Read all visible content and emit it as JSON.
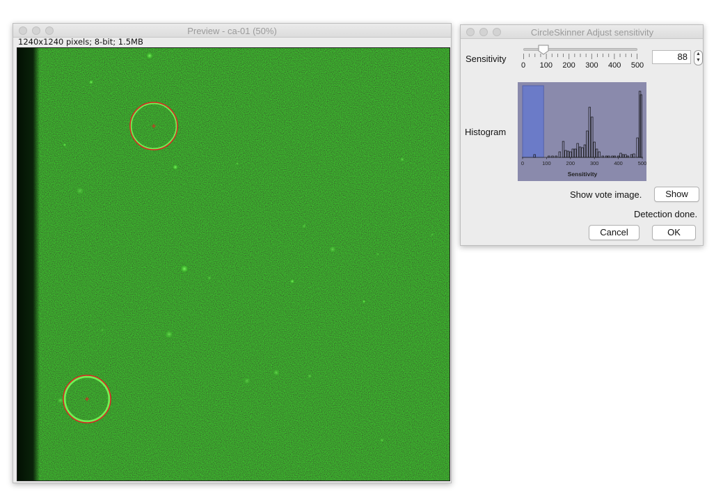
{
  "preview_window": {
    "title": "Preview - ca-01 (50%)",
    "image_info": "1240x1240 pixels; 8-bit; 1.5MB"
  },
  "dialog": {
    "title": "CircleSkinner Adjust sensitivity",
    "sensitivity_label": "Sensitivity",
    "slider": {
      "min": 0,
      "max": 500,
      "value": 88,
      "tick_labels": [
        "0",
        "100",
        "200",
        "300",
        "400",
        "500"
      ]
    },
    "sensitivity_value": "88",
    "histogram_label": "Histogram",
    "show_vote_label": "Show vote image.",
    "show_button": "Show",
    "status": "Detection done.",
    "cancel_button": "Cancel",
    "ok_button": "OK"
  },
  "chart_data": {
    "type": "bar",
    "xlabel": "Sensitivity",
    "xlim": [
      0,
      500
    ],
    "tick_labels": [
      "0",
      "100",
      "200",
      "300",
      "400",
      "500"
    ],
    "highlight_range": [
      0,
      88
    ],
    "bins_x": [
      50,
      110,
      125,
      140,
      155,
      170,
      180,
      190,
      200,
      210,
      220,
      230,
      240,
      250,
      260,
      270,
      280,
      290,
      300,
      310,
      320,
      335,
      350,
      360,
      375,
      385,
      400,
      410,
      420,
      430,
      440,
      455,
      465,
      480,
      490,
      495
    ],
    "bins_values": [
      4,
      2,
      2,
      2,
      8,
      23,
      10,
      9,
      8,
      12,
      12,
      20,
      15,
      14,
      18,
      38,
      72,
      58,
      22,
      12,
      8,
      2,
      2,
      2,
      2,
      2,
      2,
      6,
      4,
      4,
      2,
      4,
      5,
      28,
      95,
      90
    ]
  }
}
